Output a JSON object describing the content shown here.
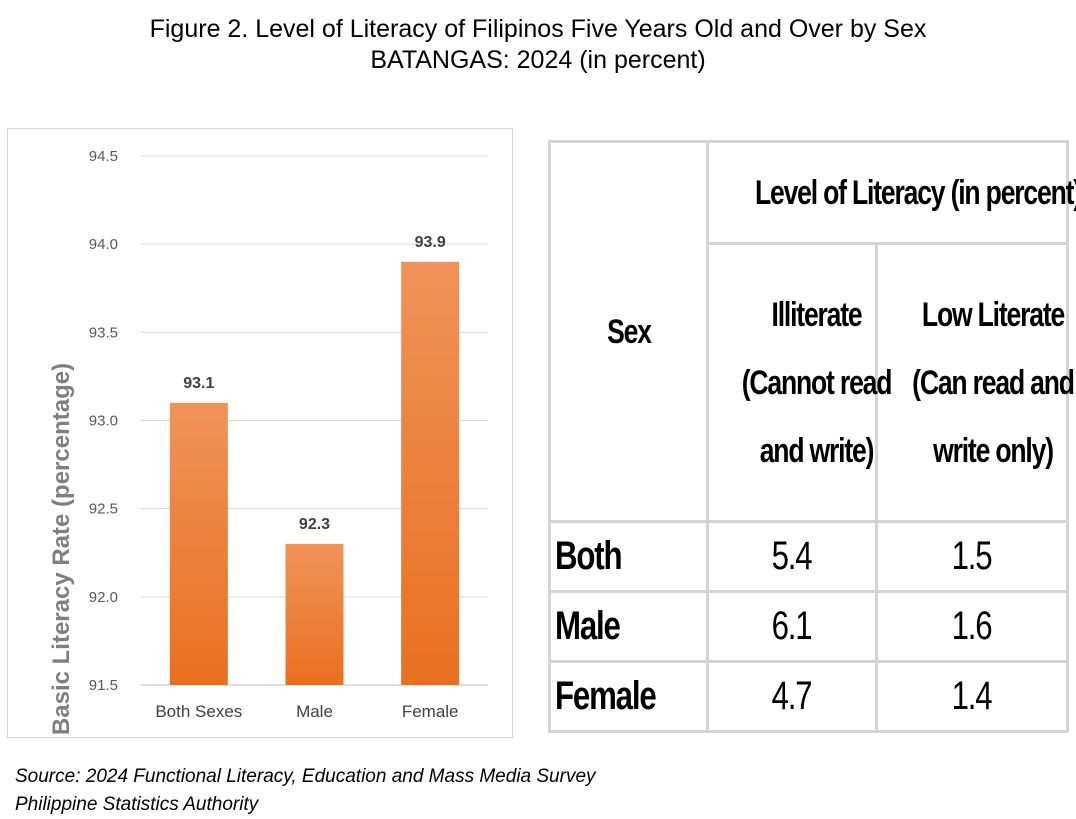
{
  "title": {
    "line1": "Figure 2.  Level of Literacy of Filipinos Five Years Old and Over by Sex",
    "line2": "BATANGAS: 2024 (in percent)"
  },
  "chart_data": {
    "type": "bar",
    "categories": [
      "Both Sexes",
      "Male",
      "Female"
    ],
    "values": [
      93.1,
      92.3,
      93.9
    ],
    "data_labels": [
      "93.1",
      "92.3",
      "93.9"
    ],
    "ylabel": "Basic Literacy Rate (percentage)",
    "xlabel": "",
    "ylim": [
      91.5,
      94.5
    ],
    "yticks": [
      "91.5",
      "92.0",
      "92.5",
      "93.0",
      "93.5",
      "94.0",
      "94.5"
    ],
    "ytick_values": [
      91.5,
      92.0,
      92.5,
      93.0,
      93.5,
      94.0,
      94.5
    ],
    "grid": true,
    "bar_color_top": "#f0935a",
    "bar_color_bottom": "#e8701f"
  },
  "table": {
    "group_header": "Level of Literacy (in percent)",
    "sex_header": "Sex",
    "col1_header": "Illiterate (Cannot read and write)",
    "col2_header": "Low Literate (Can read and write only)",
    "rows": [
      {
        "sex": "Both",
        "illiterate": "5.4",
        "low_literate": "1.5"
      },
      {
        "sex": "Male",
        "illiterate": "6.1",
        "low_literate": "1.6"
      },
      {
        "sex": "Female",
        "illiterate": "4.7",
        "low_literate": "1.4"
      }
    ],
    "border_color": "#d4d4d4"
  },
  "source": {
    "line1": "Source: 2024 Functional Literacy, Education and Mass Media Survey",
    "line2": "Philippine Statistics Authority"
  }
}
